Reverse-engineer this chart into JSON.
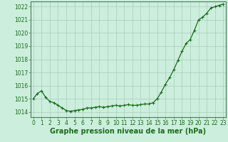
{
  "x": [
    0,
    0.5,
    1,
    1.5,
    2,
    2.5,
    3,
    3.5,
    4,
    4.5,
    5,
    5.5,
    6,
    6.5,
    7,
    7.5,
    8,
    8.5,
    9,
    9.5,
    10,
    10.5,
    11,
    11.5,
    12,
    12.5,
    13,
    13.5,
    14,
    14.5,
    15,
    15.5,
    16,
    16.5,
    17,
    17.5,
    18,
    18.5,
    19,
    19.5,
    20,
    20.5,
    21,
    21.5,
    22,
    22.5,
    23
  ],
  "y": [
    1015.0,
    1015.4,
    1015.6,
    1015.1,
    1014.8,
    1014.7,
    1014.5,
    1014.3,
    1014.1,
    1014.05,
    1014.1,
    1014.15,
    1014.2,
    1014.3,
    1014.3,
    1014.35,
    1014.4,
    1014.35,
    1014.4,
    1014.45,
    1014.5,
    1014.45,
    1014.5,
    1014.55,
    1014.5,
    1014.5,
    1014.55,
    1014.6,
    1014.6,
    1014.7,
    1015.0,
    1015.5,
    1016.1,
    1016.6,
    1017.2,
    1017.9,
    1018.6,
    1019.2,
    1019.5,
    1020.2,
    1021.0,
    1021.2,
    1021.5,
    1021.9,
    1022.0,
    1022.1,
    1022.2
  ],
  "line_color": "#1a6e1a",
  "marker_color": "#1a6e1a",
  "bg_color": "#cceedd",
  "grid_color": "#aaccbb",
  "xlabel": "Graphe pression niveau de la mer (hPa)",
  "xlabel_fontsize": 7,
  "ylim": [
    1013.6,
    1022.4
  ],
  "xlim": [
    -0.3,
    23.3
  ],
  "yticks": [
    1014,
    1015,
    1016,
    1017,
    1018,
    1019,
    1020,
    1021,
    1022
  ],
  "xticks": [
    0,
    1,
    2,
    3,
    4,
    5,
    6,
    7,
    8,
    9,
    10,
    11,
    12,
    13,
    14,
    15,
    16,
    17,
    18,
    19,
    20,
    21,
    22,
    23
  ],
  "tick_fontsize": 5.5,
  "line_width": 0.9,
  "marker_size": 3.0,
  "spine_color": "#4a7a5a"
}
